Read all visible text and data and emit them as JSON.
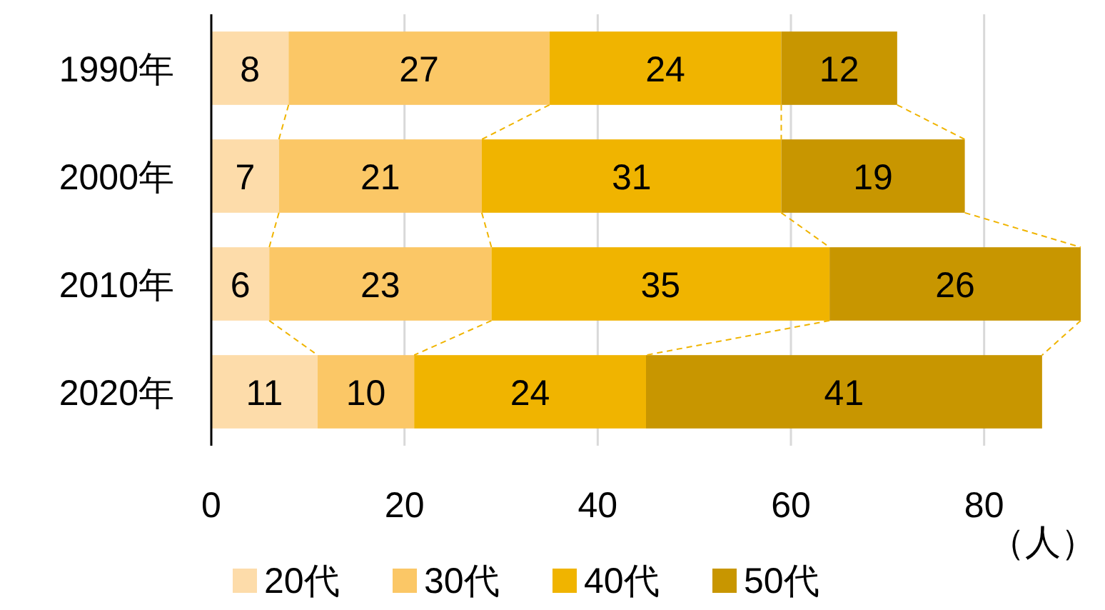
{
  "chart_data": {
    "type": "bar",
    "orientation": "horizontal",
    "stacked": true,
    "categories": [
      "1990年",
      "2000年",
      "2010年",
      "2020年"
    ],
    "series": [
      {
        "name": "20代",
        "color": "#fddcaa",
        "values": [
          8,
          7,
          6,
          11
        ]
      },
      {
        "name": "30代",
        "color": "#fbc766",
        "values": [
          27,
          21,
          23,
          10
        ]
      },
      {
        "name": "40代",
        "color": "#f0b400",
        "values": [
          24,
          31,
          35,
          24
        ]
      },
      {
        "name": "50代",
        "color": "#c89600",
        "values": [
          12,
          19,
          26,
          41
        ]
      }
    ],
    "xlim": [
      0,
      90
    ],
    "xticks": [
      0,
      20,
      40,
      60,
      80
    ],
    "xlabel": "（人）",
    "grid": "x",
    "data_labels": true,
    "legend": "bottom"
  }
}
